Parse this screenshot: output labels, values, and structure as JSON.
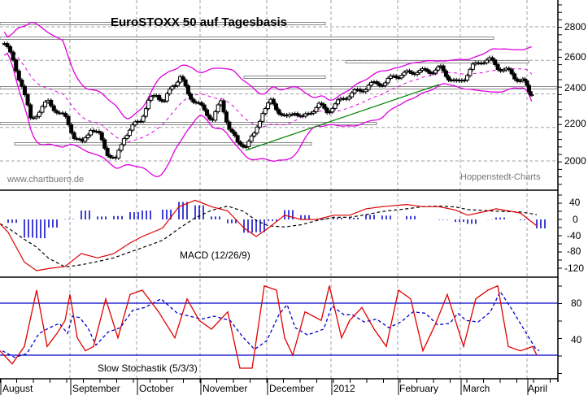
{
  "chart_data": [
    {
      "panel": "price",
      "type": "candlestick",
      "title": "EuroSTOXX 50 auf Tagesbasis",
      "xlabel": "",
      "ylabel": "",
      "ylim": [
        1900,
        2950
      ],
      "yticks": [
        2000,
        2200,
        2400,
        2600,
        2800
      ],
      "grid": true,
      "overlays": [
        "Bollinger Bands (upper, middle, lower)",
        "Trendline (green)",
        "Horizontal support/resistance lines (gray)"
      ],
      "approx_close_path": [
        {
          "month": "August",
          "values": [
            2700,
            2600,
            2450,
            2250,
            2300,
            2350,
            2300,
            2250
          ]
        },
        {
          "month": "September",
          "values": [
            2150,
            2100,
            2200,
            2150,
            2050,
            2000,
            2150,
            2200
          ]
        },
        {
          "month": "October",
          "values": [
            2250,
            2350,
            2400,
            2350,
            2450,
            2500,
            2400,
            2350
          ]
        },
        {
          "month": "November",
          "values": [
            2300,
            2250,
            2350,
            2200,
            2100,
            2100,
            2150,
            2300
          ]
        },
        {
          "month": "December",
          "values": [
            2350,
            2300,
            2250,
            2300,
            2250,
            2300,
            2330,
            2300
          ]
        },
        {
          "month": "2012",
          "values": [
            2330,
            2380,
            2400,
            2420,
            2450,
            2460,
            2470,
            2500
          ]
        },
        {
          "month": "February",
          "values": [
            2520,
            2520,
            2540,
            2530,
            2540,
            2550,
            2500,
            2460
          ]
        },
        {
          "month": "March",
          "values": [
            2500,
            2560,
            2600,
            2600,
            2560,
            2540,
            2500,
            2480
          ]
        },
        {
          "month": "April",
          "values": [
            2420,
            2400
          ]
        }
      ]
    },
    {
      "panel": "macd",
      "type": "line",
      "title": "MACD (12/26/9)",
      "ylim": [
        -140,
        60
      ],
      "yticks": [
        40,
        0,
        -40,
        -80,
        -120
      ],
      "series": [
        {
          "name": "MACD",
          "color": "#e00000"
        },
        {
          "name": "Signal",
          "color": "#000000",
          "style": "dashed"
        },
        {
          "name": "Histogram",
          "color": "#0000cc",
          "style": "bars"
        }
      ]
    },
    {
      "panel": "stochastic",
      "type": "line",
      "title": "Slow Stochastik (5/3/3)",
      "ylim": [
        0,
        110
      ],
      "yticks": [
        80,
        40
      ],
      "reference_lines": [
        80,
        20
      ],
      "series": [
        {
          "name": "%K",
          "color": "#e00000"
        },
        {
          "name": "%D",
          "color": "#0000cc",
          "style": "dashed"
        }
      ]
    }
  ],
  "header": {
    "title": "EuroSTOXX 50 auf Tagesbasis"
  },
  "watermarks": {
    "left": "www.chartbuero.de",
    "right": "Hoppenstedt-Charts"
  },
  "price_axis": {
    "labels": [
      "2800",
      "2600",
      "2400",
      "2200",
      "2000"
    ]
  },
  "macd_axis": {
    "labels": [
      "40",
      "0",
      "-40",
      "-80",
      "-120"
    ],
    "title": "MACD (12/26/9)"
  },
  "stoch_axis": {
    "labels": [
      "80",
      "40"
    ],
    "title": "Slow Stochastik (5/3/3)"
  },
  "x_axis": {
    "months": [
      "August",
      "September",
      "October",
      "November",
      "December",
      "2012",
      "February",
      "March",
      "April"
    ]
  },
  "colors": {
    "bollinger": "#e000e0",
    "trendline": "#008000",
    "macd": "#e00000",
    "signal": "#000000",
    "histogram": "#0000cc",
    "stoch_k": "#e00000",
    "stoch_d": "#0000cc",
    "ref_line": "#0000cc",
    "grid": "#a0a0a0"
  }
}
